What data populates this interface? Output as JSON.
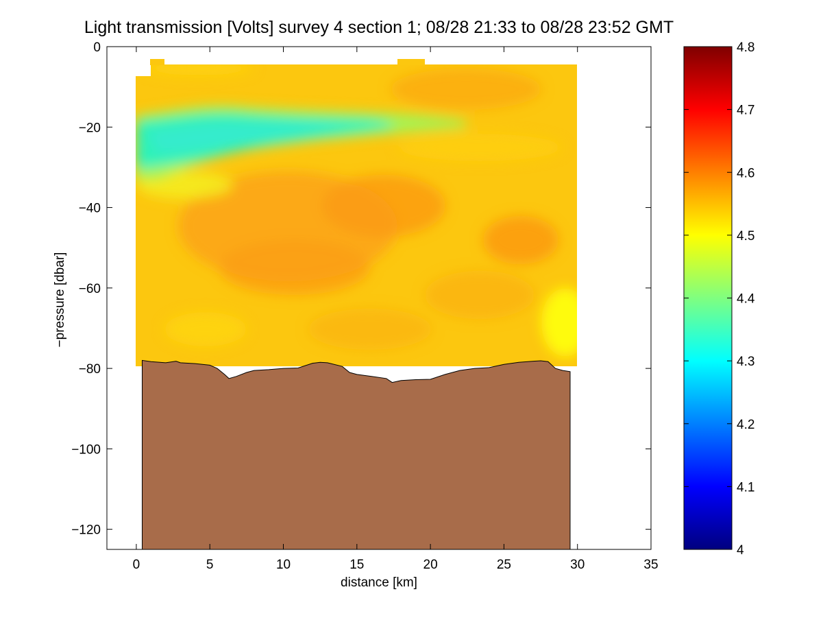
{
  "chart_data": {
    "type": "heatmap",
    "title": "Light transmission [Volts] survey 4 section 1; 08/28 21:33 to 08/28 23:52 GMT",
    "xlabel": "distance [km]",
    "ylabel": "−pressure [dbar]",
    "xlim": [
      -2,
      35
    ],
    "ylim": [
      -125,
      0
    ],
    "xticks": [
      0,
      5,
      10,
      15,
      20,
      25,
      30,
      35
    ],
    "yticks": [
      0,
      -20,
      -40,
      -60,
      -80,
      -100,
      -120
    ],
    "tick_labels_x": [
      "0",
      "5",
      "10",
      "15",
      "20",
      "25",
      "30",
      "35"
    ],
    "tick_labels_y": [
      "0",
      "−20",
      "−40",
      "−60",
      "−80",
      "−100",
      "−120"
    ],
    "grid": false,
    "colorbar": {
      "range": [
        4.0,
        4.8
      ],
      "ticks": [
        4,
        4.1,
        4.2,
        4.3,
        4.4,
        4.5,
        4.6,
        4.7,
        4.8
      ],
      "tick_labels": [
        "4",
        "4.1",
        "4.2",
        "4.3",
        "4.4",
        "4.5",
        "4.6",
        "4.7",
        "4.8"
      ],
      "colormap": "jet",
      "placement": "right"
    },
    "data_region": {
      "x_start_km": 0,
      "x_end_km": 30,
      "top_dbar": -4.5,
      "background_value": 4.54,
      "features": [
        {
          "label": "low-transmission layer",
          "x_km": [
            0,
            16
          ],
          "depth_dbar": [
            -18,
            -28
          ],
          "value": 4.34
        },
        {
          "label": "high-transmission patch",
          "x_km": [
            5,
            14
          ],
          "depth_dbar": [
            -35,
            -60
          ],
          "value": 4.6
        },
        {
          "label": "high-transmission patch",
          "x_km": [
            24,
            28
          ],
          "depth_dbar": [
            -45,
            -55
          ],
          "value": 4.6
        },
        {
          "label": "yellow patch",
          "x_km": [
            28,
            30
          ],
          "depth_dbar": [
            -65,
            -78
          ],
          "value": 4.5
        }
      ]
    },
    "bathymetry": {
      "color": "#a86c4a",
      "distance_km": [
        0.4,
        1.0,
        2.0,
        2.7,
        3.0,
        4.0,
        5.0,
        5.5,
        6.0,
        6.3,
        6.8,
        7.5,
        8.0,
        9.0,
        10.0,
        11.0,
        12.0,
        12.5,
        13.0,
        14.0,
        14.5,
        15.0,
        16.0,
        17.0,
        17.4,
        18.0,
        19.0,
        20.0,
        21.0,
        22.0,
        23.0,
        24.0,
        25.0,
        26.0,
        27.0,
        27.5,
        28.0,
        28.5,
        29.0,
        29.5
      ],
      "depth_dbar": [
        -78,
        -78.3,
        -78.6,
        -78.2,
        -78.6,
        -78.8,
        -79.2,
        -80,
        -81.5,
        -82.5,
        -82,
        -81,
        -80.5,
        -80.3,
        -80,
        -79.9,
        -78.7,
        -78.5,
        -78.6,
        -79.5,
        -81,
        -81.5,
        -82,
        -82.5,
        -83.5,
        -83,
        -82.8,
        -82.7,
        -81.5,
        -80.5,
        -80,
        -79.8,
        -79,
        -78.5,
        -78.2,
        -78.1,
        -78.3,
        -80,
        -80.5,
        -80.8
      ]
    }
  }
}
